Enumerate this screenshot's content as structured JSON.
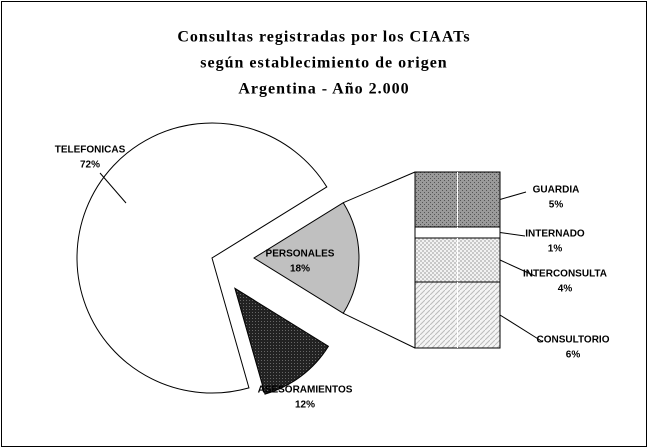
{
  "chart_data": {
    "type": "pie",
    "title": [
      "Consultas registradas por los CIAATs",
      "según establecimiento de origen",
      "Argentina - Año 2.000"
    ],
    "categories": [
      "PERSONALES",
      "ASESORAMIENTOS",
      "TELEFONICAS"
    ],
    "values": [
      18,
      12,
      72
    ],
    "value_labels": [
      "18%",
      "12%",
      "72%"
    ],
    "colors": [
      "#c0c0c0",
      "#333333",
      "#ffffff"
    ],
    "breakdown": {
      "categories": [
        "GUARDIA",
        "INTERNADO",
        "INTERCONSULTA",
        "CONSULTORIO"
      ],
      "values": [
        5,
        1,
        4,
        6
      ],
      "value_labels": [
        "5%",
        "1%",
        "4%",
        "6%"
      ],
      "colors": [
        "#8a8a8a",
        "#ffffff",
        "#dcdcdc",
        "#eeeeee"
      ]
    }
  }
}
